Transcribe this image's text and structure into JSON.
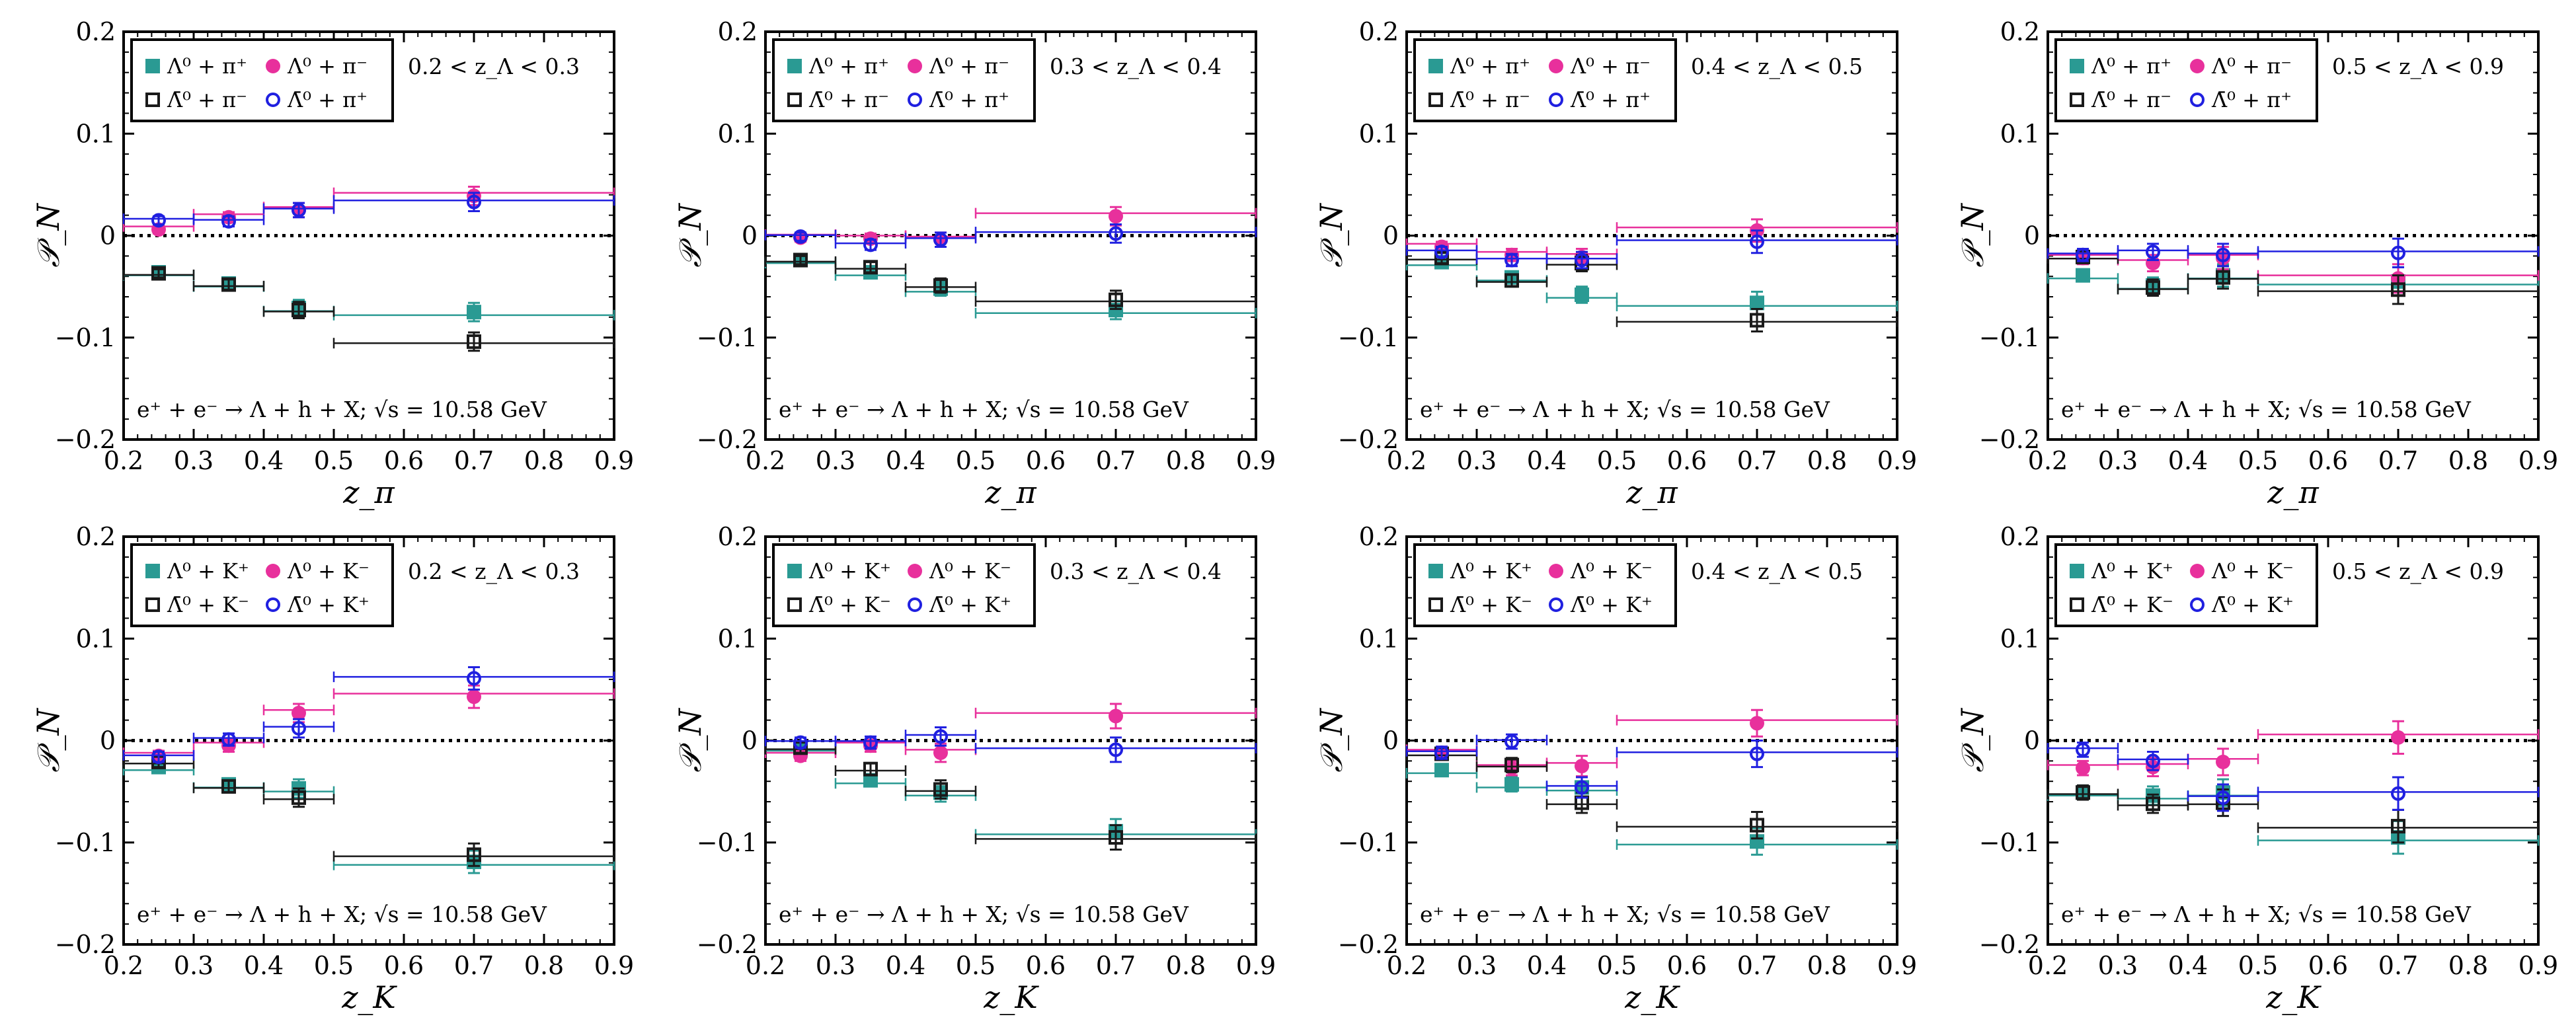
{
  "figure_title": "",
  "colors": {
    "Lambda_hplus": "#2a9a93",
    "Lambda_hminus": "#e8309c",
    "antiLambda_hminus": "#1a1a1a",
    "antiLambda_hplus": "#2020e0",
    "zero_line": "#000000"
  },
  "icons": {
    "Lambda_hplus": "filled-square-marker",
    "Lambda_hminus": "filled-circle-marker",
    "antiLambda_hminus": "open-square-marker",
    "antiLambda_hplus": "open-circle-marker"
  },
  "chart_data": [
    {
      "type": "scatter",
      "row": 0,
      "col": 0,
      "xlabel": "z_π",
      "ylabel": "𝒫_N",
      "xlim": [
        0.2,
        0.9
      ],
      "ylim": [
        -0.2,
        0.2
      ],
      "xticks": [
        "0.2",
        "0.3",
        "0.4",
        "0.5",
        "0.6",
        "0.7",
        "0.8",
        "0.9"
      ],
      "yticks": [
        "0.2",
        "0.1",
        "0",
        "−0.1",
        "−0.2"
      ],
      "z_range": "0.2 < z_Λ < 0.3",
      "process": "e⁺ + e⁻ → Λ + h + X; √s = 10.58 GeV",
      "legend": [
        "Λ⁰ + π⁺",
        "Λ⁰ + π⁻",
        "Λ̄⁰ + π⁻",
        "Λ̄⁰ + π⁺"
      ],
      "legend_position": "top-left",
      "bins": [
        [
          0.2,
          0.3
        ],
        [
          0.3,
          0.4
        ],
        [
          0.4,
          0.5
        ],
        [
          0.5,
          0.9
        ]
      ],
      "x": [
        0.25,
        0.35,
        0.45,
        0.7
      ],
      "series": [
        {
          "name": "Λ⁰ + π⁺",
          "y": [
            -0.036,
            -0.047,
            -0.071,
            -0.075
          ],
          "err": [
            0.004,
            0.005,
            0.008,
            0.009
          ]
        },
        {
          "name": "Λ⁰ + π⁻",
          "y": [
            0.006,
            0.018,
            0.025,
            0.039
          ],
          "err": [
            0.004,
            0.005,
            0.007,
            0.009
          ]
        },
        {
          "name": "Λ̄⁰ + π⁻",
          "y": [
            -0.037,
            -0.048,
            -0.073,
            -0.104
          ],
          "err": [
            0.004,
            0.005,
            0.008,
            0.009
          ]
        },
        {
          "name": "Λ̄⁰ + π⁺",
          "y": [
            0.015,
            0.014,
            0.025,
            0.033
          ],
          "err": [
            0.004,
            0.005,
            0.007,
            0.009
          ]
        }
      ]
    },
    {
      "type": "scatter",
      "row": 0,
      "col": 1,
      "xlabel": "z_π",
      "ylabel": "𝒫_N",
      "xlim": [
        0.2,
        0.9
      ],
      "ylim": [
        -0.2,
        0.2
      ],
      "xticks": [
        "0.2",
        "0.3",
        "0.4",
        "0.5",
        "0.6",
        "0.7",
        "0.8",
        "0.9"
      ],
      "yticks": [
        "0.2",
        "0.1",
        "0",
        "−0.1",
        "−0.2"
      ],
      "z_range": "0.3 < z_Λ < 0.4",
      "process": "e⁺ + e⁻ → Λ + h + X; √s = 10.58 GeV",
      "legend": [
        "Λ⁰ + π⁺",
        "Λ⁰ + π⁻",
        "Λ̄⁰ + π⁻",
        "Λ̄⁰ + π⁺"
      ],
      "legend_position": "top-left",
      "bins": [
        [
          0.2,
          0.3
        ],
        [
          0.3,
          0.4
        ],
        [
          0.4,
          0.5
        ],
        [
          0.5,
          0.9
        ]
      ],
      "x": [
        0.25,
        0.35,
        0.45,
        0.7
      ],
      "series": [
        {
          "name": "Λ⁰ + π⁺",
          "y": [
            -0.024,
            -0.036,
            -0.052,
            -0.073
          ],
          "err": [
            0.004,
            0.005,
            0.007,
            0.009
          ]
        },
        {
          "name": "Λ⁰ + π⁻",
          "y": [
            -0.002,
            -0.003,
            -0.004,
            0.019
          ],
          "err": [
            0.004,
            0.005,
            0.007,
            0.009
          ]
        },
        {
          "name": "Λ̄⁰ + π⁻",
          "y": [
            -0.024,
            -0.031,
            -0.049,
            -0.063
          ],
          "err": [
            0.004,
            0.005,
            0.007,
            0.009
          ]
        },
        {
          "name": "Λ̄⁰ + π⁺",
          "y": [
            -0.001,
            -0.009,
            -0.004,
            0.002
          ],
          "err": [
            0.004,
            0.005,
            0.007,
            0.009
          ]
        }
      ]
    },
    {
      "type": "scatter",
      "row": 0,
      "col": 2,
      "xlabel": "z_π",
      "ylabel": "𝒫_N",
      "xlim": [
        0.2,
        0.9
      ],
      "ylim": [
        -0.2,
        0.2
      ],
      "xticks": [
        "0.2",
        "0.3",
        "0.4",
        "0.5",
        "0.6",
        "0.7",
        "0.8",
        "0.9"
      ],
      "yticks": [
        "0.2",
        "0.1",
        "0",
        "−0.1",
        "−0.2"
      ],
      "z_range": "0.4 < z_Λ < 0.5",
      "process": "e⁺ + e⁻ → Λ + h + X; √s = 10.58 GeV",
      "legend": [
        "Λ⁰ + π⁺",
        "Λ⁰ + π⁻",
        "Λ̄⁰ + π⁻",
        "Λ̄⁰ + π⁺"
      ],
      "legend_position": "top-left",
      "bins": [
        [
          0.2,
          0.3
        ],
        [
          0.3,
          0.4
        ],
        [
          0.4,
          0.5
        ],
        [
          0.5,
          0.9
        ]
      ],
      "x": [
        0.25,
        0.35,
        0.45,
        0.7
      ],
      "series": [
        {
          "name": "Λ⁰ + π⁺",
          "y": [
            -0.026,
            -0.041,
            -0.058,
            -0.066
          ],
          "err": [
            0.005,
            0.006,
            0.008,
            0.011
          ]
        },
        {
          "name": "Λ⁰ + π⁻",
          "y": [
            -0.011,
            -0.019,
            -0.021,
            0.005
          ],
          "err": [
            0.005,
            0.006,
            0.008,
            0.011
          ]
        },
        {
          "name": "Λ̄⁰ + π⁻",
          "y": [
            -0.022,
            -0.044,
            -0.027,
            -0.083
          ],
          "err": [
            0.005,
            0.006,
            0.008,
            0.011
          ]
        },
        {
          "name": "Λ̄⁰ + π⁺",
          "y": [
            -0.016,
            -0.024,
            -0.024,
            -0.006
          ],
          "err": [
            0.005,
            0.006,
            0.008,
            0.011
          ]
        }
      ]
    },
    {
      "type": "scatter",
      "row": 0,
      "col": 3,
      "xlabel": "z_π",
      "ylabel": "𝒫_N",
      "xlim": [
        0.2,
        0.9
      ],
      "ylim": [
        -0.2,
        0.2
      ],
      "xticks": [
        "0.2",
        "0.3",
        "0.4",
        "0.5",
        "0.6",
        "0.7",
        "0.8",
        "0.9"
      ],
      "yticks": [
        "0.2",
        "0.1",
        "0",
        "−0.1",
        "−0.2"
      ],
      "z_range": "0.5 < z_Λ < 0.9",
      "process": "e⁺ + e⁻ → Λ + h + X; √s = 10.58 GeV",
      "legend": [
        "Λ⁰ + π⁺",
        "Λ⁰ + π⁻",
        "Λ̄⁰ + π⁻",
        "Λ̄⁰ + π⁺"
      ],
      "legend_position": "top-left",
      "bins": [
        [
          0.2,
          0.3
        ],
        [
          0.3,
          0.4
        ],
        [
          0.4,
          0.5
        ],
        [
          0.5,
          0.9
        ]
      ],
      "x": [
        0.25,
        0.35,
        0.45,
        0.7
      ],
      "series": [
        {
          "name": "Λ⁰ + π⁺",
          "y": [
            -0.039,
            -0.049,
            -0.039,
            -0.045
          ],
          "err": [
            0.006,
            0.008,
            0.011,
            0.014
          ]
        },
        {
          "name": "Λ⁰ + π⁻",
          "y": [
            -0.022,
            -0.027,
            -0.022,
            -0.042
          ],
          "err": [
            0.006,
            0.008,
            0.011,
            0.014
          ]
        },
        {
          "name": "Λ̄⁰ + π⁻",
          "y": [
            -0.021,
            -0.051,
            -0.041,
            -0.053
          ],
          "err": [
            0.006,
            0.008,
            0.011,
            0.014
          ]
        },
        {
          "name": "Λ̄⁰ + π⁺",
          "y": [
            -0.019,
            -0.016,
            -0.019,
            -0.017
          ],
          "err": [
            0.006,
            0.008,
            0.011,
            0.014
          ]
        }
      ]
    },
    {
      "type": "scatter",
      "row": 1,
      "col": 0,
      "xlabel": "z_K",
      "ylabel": "𝒫_N",
      "xlim": [
        0.2,
        0.9
      ],
      "ylim": [
        -0.2,
        0.2
      ],
      "xticks": [
        "0.2",
        "0.3",
        "0.4",
        "0.5",
        "0.6",
        "0.7",
        "0.8",
        "0.9"
      ],
      "yticks": [
        "0.2",
        "0.1",
        "0",
        "−0.1",
        "−0.2"
      ],
      "z_range": "0.2 < z_Λ < 0.3",
      "process": "e⁺ + e⁻ → Λ + h + X; √s = 10.58 GeV",
      "legend": [
        "Λ⁰ + K⁺",
        "Λ⁰ + K⁻",
        "Λ̄⁰ + K⁻",
        "Λ̄⁰ + K⁺"
      ],
      "legend_position": "top-left",
      "bins": [
        [
          0.2,
          0.3
        ],
        [
          0.3,
          0.4
        ],
        [
          0.4,
          0.5
        ],
        [
          0.5,
          0.9
        ]
      ],
      "x": [
        0.25,
        0.35,
        0.45,
        0.7
      ],
      "series": [
        {
          "name": "Λ⁰ + K⁺",
          "y": [
            -0.026,
            -0.043,
            -0.047,
            -0.119
          ],
          "err": [
            0.005,
            0.006,
            0.009,
            0.011
          ]
        },
        {
          "name": "Λ⁰ + K⁻",
          "y": [
            -0.015,
            -0.005,
            0.027,
            0.043
          ],
          "err": [
            0.005,
            0.006,
            0.009,
            0.011
          ]
        },
        {
          "name": "Λ̄⁰ + K⁻",
          "y": [
            -0.021,
            -0.045,
            -0.056,
            -0.112
          ],
          "err": [
            0.005,
            0.006,
            0.009,
            0.011
          ]
        },
        {
          "name": "Λ̄⁰ + K⁺",
          "y": [
            -0.016,
            0.001,
            0.012,
            0.061
          ],
          "err": [
            0.005,
            0.006,
            0.009,
            0.011
          ]
        }
      ]
    },
    {
      "type": "scatter",
      "row": 1,
      "col": 1,
      "xlabel": "z_K",
      "ylabel": "𝒫_N",
      "xlim": [
        0.2,
        0.9
      ],
      "ylim": [
        -0.2,
        0.2
      ],
      "xticks": [
        "0.2",
        "0.3",
        "0.4",
        "0.5",
        "0.6",
        "0.7",
        "0.8",
        "0.9"
      ],
      "yticks": [
        "0.2",
        "0.1",
        "0",
        "−0.1",
        "−0.2"
      ],
      "z_range": "0.3 < z_Λ < 0.4",
      "process": "e⁺ + e⁻ → Λ + h + X; √s = 10.58 GeV",
      "legend": [
        "Λ⁰ + K⁺",
        "Λ⁰ + K⁻",
        "Λ̄⁰ + K⁻",
        "Λ̄⁰ + K⁺"
      ],
      "legend_position": "top-left",
      "bins": [
        [
          0.2,
          0.3
        ],
        [
          0.3,
          0.4
        ],
        [
          0.4,
          0.5
        ],
        [
          0.5,
          0.9
        ]
      ],
      "x": [
        0.25,
        0.35,
        0.45,
        0.7
      ],
      "series": [
        {
          "name": "Λ⁰ + K⁺",
          "y": [
            -0.007,
            -0.039,
            -0.051,
            -0.089
          ],
          "err": [
            0.005,
            0.006,
            0.009,
            0.012
          ]
        },
        {
          "name": "Λ⁰ + K⁻",
          "y": [
            -0.015,
            -0.005,
            -0.012,
            0.024
          ],
          "err": [
            0.005,
            0.006,
            0.009,
            0.012
          ]
        },
        {
          "name": "Λ̄⁰ + K⁻",
          "y": [
            -0.007,
            -0.028,
            -0.048,
            -0.095
          ],
          "err": [
            0.005,
            0.006,
            0.009,
            0.012
          ]
        },
        {
          "name": "Λ̄⁰ + K⁺",
          "y": [
            -0.002,
            -0.002,
            0.004,
            -0.009
          ],
          "err": [
            0.005,
            0.006,
            0.009,
            0.012
          ]
        }
      ]
    },
    {
      "type": "scatter",
      "row": 1,
      "col": 2,
      "xlabel": "z_K",
      "ylabel": "𝒫_N",
      "xlim": [
        0.2,
        0.9
      ],
      "ylim": [
        -0.2,
        0.2
      ],
      "xticks": [
        "0.2",
        "0.3",
        "0.4",
        "0.5",
        "0.6",
        "0.7",
        "0.8",
        "0.9"
      ],
      "yticks": [
        "0.2",
        "0.1",
        "0",
        "−0.1",
        "−0.2"
      ],
      "z_range": "0.4 < z_Λ < 0.5",
      "process": "e⁺ + e⁻ → Λ + h + X; √s = 10.58 GeV",
      "legend": [
        "Λ⁰ + K⁺",
        "Λ⁰ + K⁻",
        "Λ̄⁰ + K⁻",
        "Λ̄⁰ + K⁺"
      ],
      "legend_position": "top-left",
      "bins": [
        [
          0.2,
          0.3
        ],
        [
          0.3,
          0.4
        ],
        [
          0.4,
          0.5
        ],
        [
          0.5,
          0.9
        ]
      ],
      "x": [
        0.25,
        0.35,
        0.45,
        0.7
      ],
      "series": [
        {
          "name": "Λ⁰ + K⁺",
          "y": [
            -0.029,
            -0.043,
            -0.046,
            -0.099
          ],
          "err": [
            0.006,
            0.007,
            0.01,
            0.013
          ]
        },
        {
          "name": "Λ⁰ + K⁻",
          "y": [
            -0.012,
            -0.027,
            -0.025,
            0.017
          ],
          "err": [
            0.006,
            0.007,
            0.01,
            0.013
          ]
        },
        {
          "name": "Λ̄⁰ + K⁻",
          "y": [
            -0.013,
            -0.024,
            -0.061,
            -0.083
          ],
          "err": [
            0.006,
            0.007,
            0.01,
            0.013
          ]
        },
        {
          "name": "Λ̄⁰ + K⁺",
          "y": [
            -0.012,
            -0.001,
            -0.046,
            -0.013
          ],
          "err": [
            0.006,
            0.007,
            0.01,
            0.013
          ]
        }
      ]
    },
    {
      "type": "scatter",
      "row": 1,
      "col": 3,
      "xlabel": "z_K",
      "ylabel": "𝒫_N",
      "xlim": [
        0.2,
        0.9
      ],
      "ylim": [
        -0.2,
        0.2
      ],
      "xticks": [
        "0.2",
        "0.3",
        "0.4",
        "0.5",
        "0.6",
        "0.7",
        "0.8",
        "0.9"
      ],
      "yticks": [
        "0.2",
        "0.1",
        "0",
        "−0.1",
        "−0.2"
      ],
      "z_range": "0.5 < z_Λ < 0.9",
      "process": "e⁺ + e⁻ → Λ + h + X; √s = 10.58 GeV",
      "legend": [
        "Λ⁰ + K⁺",
        "Λ⁰ + K⁻",
        "Λ̄⁰ + K⁻",
        "Λ̄⁰ + K⁺"
      ],
      "legend_position": "top-left",
      "bins": [
        [
          0.2,
          0.3
        ],
        [
          0.3,
          0.4
        ],
        [
          0.4,
          0.5
        ],
        [
          0.5,
          0.9
        ]
      ],
      "x": [
        0.25,
        0.35,
        0.45,
        0.7
      ],
      "series": [
        {
          "name": "Λ⁰ + K⁺",
          "y": [
            -0.051,
            -0.054,
            -0.051,
            -0.095
          ],
          "err": [
            0.007,
            0.009,
            0.013,
            0.016
          ]
        },
        {
          "name": "Λ⁰ + K⁻",
          "y": [
            -0.027,
            -0.026,
            -0.021,
            0.003
          ],
          "err": [
            0.007,
            0.009,
            0.013,
            0.016
          ]
        },
        {
          "name": "Λ̄⁰ + K⁻",
          "y": [
            -0.051,
            -0.062,
            -0.061,
            -0.084
          ],
          "err": [
            0.007,
            0.009,
            0.013,
            0.016
          ]
        },
        {
          "name": "Λ̄⁰ + K⁺",
          "y": [
            -0.009,
            -0.02,
            -0.056,
            -0.052
          ],
          "err": [
            0.007,
            0.009,
            0.013,
            0.016
          ]
        }
      ]
    }
  ]
}
